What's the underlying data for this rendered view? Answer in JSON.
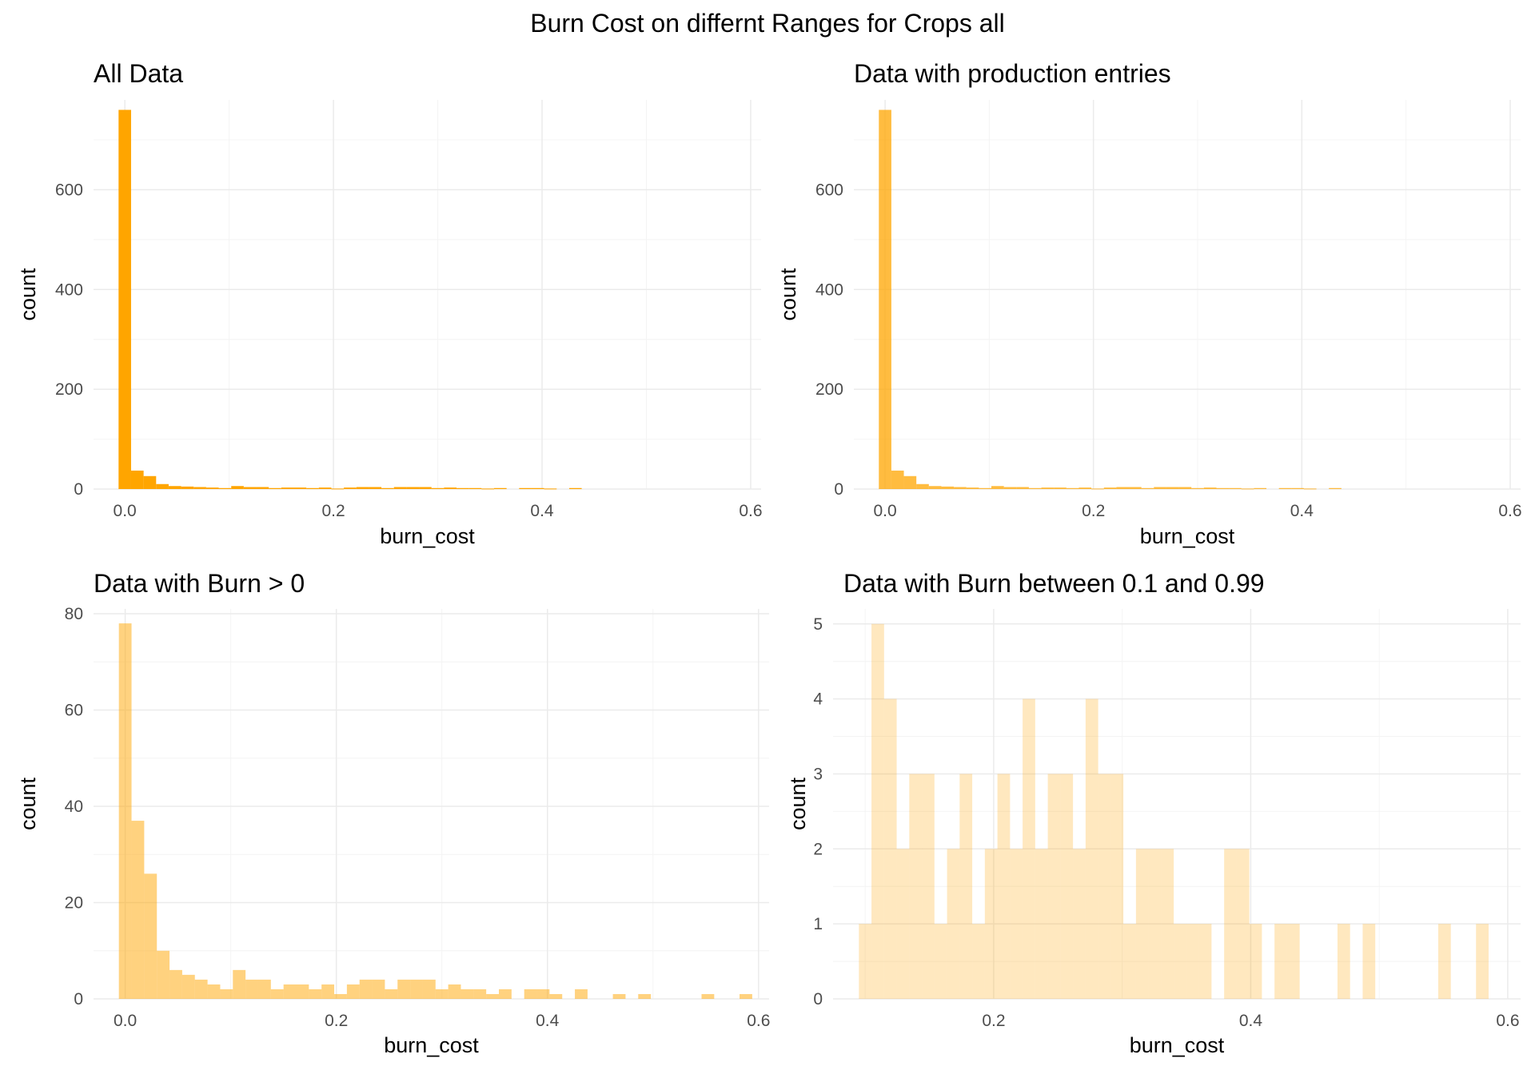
{
  "suptitle": "Burn Cost on differnt Ranges for Crops all",
  "colors": {
    "bar": "#FFA500"
  },
  "chart_data": [
    {
      "type": "bar",
      "title": "All Data",
      "xlabel": "burn_cost",
      "ylabel": "count",
      "bar_opacity": 1.0,
      "binwidth": 0.012,
      "xlim": [
        -0.03,
        0.61
      ],
      "ylim": [
        0,
        780
      ],
      "xticks": [
        0.0,
        0.2,
        0.4,
        0.6
      ],
      "xtick_labels": [
        "0.0",
        "0.2",
        "0.4",
        "0.6"
      ],
      "yticks": [
        0,
        200,
        400,
        600
      ],
      "ytick_labels": [
        "0",
        "200",
        "400",
        "600"
      ],
      "bin_centers": [
        0.0,
        0.012,
        0.024,
        0.036,
        0.048,
        0.06,
        0.072,
        0.084,
        0.096,
        0.108,
        0.12,
        0.132,
        0.144,
        0.156,
        0.168,
        0.18,
        0.192,
        0.204,
        0.216,
        0.228,
        0.24,
        0.252,
        0.264,
        0.276,
        0.288,
        0.3,
        0.312,
        0.324,
        0.336,
        0.348,
        0.36,
        0.372,
        0.384,
        0.396,
        0.408,
        0.42,
        0.432
      ],
      "counts": [
        760,
        37,
        26,
        10,
        6,
        5,
        4,
        3,
        2,
        6,
        4,
        4,
        2,
        3,
        3,
        2,
        3,
        1,
        3,
        4,
        4,
        2,
        4,
        4,
        4,
        2,
        3,
        2,
        2,
        1,
        2,
        0,
        2,
        2,
        1,
        0,
        2
      ]
    },
    {
      "type": "bar",
      "title": "Data with production entries",
      "xlabel": "burn_cost",
      "ylabel": "count",
      "bar_opacity": 0.75,
      "binwidth": 0.012,
      "xlim": [
        -0.03,
        0.61
      ],
      "ylim": [
        0,
        780
      ],
      "xticks": [
        0.0,
        0.2,
        0.4,
        0.6
      ],
      "xtick_labels": [
        "0.0",
        "0.2",
        "0.4",
        "0.6"
      ],
      "yticks": [
        0,
        200,
        400,
        600
      ],
      "ytick_labels": [
        "0",
        "200",
        "400",
        "600"
      ],
      "bin_centers": [
        0.0,
        0.012,
        0.024,
        0.036,
        0.048,
        0.06,
        0.072,
        0.084,
        0.096,
        0.108,
        0.12,
        0.132,
        0.144,
        0.156,
        0.168,
        0.18,
        0.192,
        0.204,
        0.216,
        0.228,
        0.24,
        0.252,
        0.264,
        0.276,
        0.288,
        0.3,
        0.312,
        0.324,
        0.336,
        0.348,
        0.36,
        0.372,
        0.384,
        0.396,
        0.408,
        0.42,
        0.432
      ],
      "counts": [
        760,
        37,
        26,
        10,
        6,
        5,
        4,
        3,
        2,
        6,
        4,
        4,
        2,
        3,
        3,
        2,
        3,
        1,
        3,
        4,
        4,
        2,
        4,
        4,
        4,
        2,
        3,
        2,
        2,
        1,
        2,
        0,
        2,
        2,
        1,
        0,
        2
      ]
    },
    {
      "type": "bar",
      "title": "Data with Burn > 0",
      "xlabel": "burn_cost",
      "ylabel": "count",
      "bar_opacity": 0.5,
      "binwidth": 0.012,
      "xlim": [
        -0.03,
        0.61
      ],
      "ylim": [
        0,
        81
      ],
      "xticks": [
        0.0,
        0.2,
        0.4,
        0.6
      ],
      "xtick_labels": [
        "0.0",
        "0.2",
        "0.4",
        "0.6"
      ],
      "yticks": [
        0,
        20,
        40,
        60,
        80
      ],
      "ytick_labels": [
        "0",
        "20",
        "40",
        "60",
        "80"
      ],
      "bin_centers": [
        0.0,
        0.012,
        0.024,
        0.036,
        0.048,
        0.06,
        0.072,
        0.084,
        0.096,
        0.108,
        0.12,
        0.132,
        0.144,
        0.156,
        0.168,
        0.18,
        0.192,
        0.204,
        0.216,
        0.228,
        0.24,
        0.252,
        0.264,
        0.276,
        0.288,
        0.3,
        0.312,
        0.324,
        0.336,
        0.348,
        0.36,
        0.372,
        0.384,
        0.396,
        0.408,
        0.42,
        0.432,
        0.444,
        0.456,
        0.468,
        0.48,
        0.492,
        0.504,
        0.516,
        0.528,
        0.54,
        0.552,
        0.564,
        0.576,
        0.588
      ],
      "counts": [
        78,
        37,
        26,
        10,
        6,
        5,
        4,
        3,
        2,
        6,
        4,
        4,
        2,
        3,
        3,
        2,
        3,
        1,
        3,
        4,
        4,
        2,
        4,
        4,
        4,
        2,
        3,
        2,
        2,
        1,
        2,
        0,
        2,
        2,
        1,
        0,
        2,
        0,
        0,
        1,
        0,
        1,
        0,
        0,
        0,
        0,
        1,
        0,
        0,
        1
      ]
    },
    {
      "type": "bar",
      "title": "Data with Burn between 0.1 and 0.99",
      "xlabel": "burn_cost",
      "ylabel": "count",
      "bar_opacity": 0.25,
      "binwidth": 0.0098,
      "xlim": [
        0.075,
        0.61
      ],
      "ylim": [
        0,
        5.2
      ],
      "xticks": [
        0.2,
        0.4,
        0.6
      ],
      "xtick_labels": [
        "0.2",
        "0.4",
        "0.6"
      ],
      "yticks": [
        0,
        1,
        2,
        3,
        4,
        5
      ],
      "ytick_labels": [
        "0",
        "1",
        "2",
        "3",
        "4",
        "5"
      ],
      "bin_centers": [
        0.1,
        0.1098,
        0.1196,
        0.1294,
        0.1392,
        0.149,
        0.1588,
        0.1686,
        0.1784,
        0.1882,
        0.198,
        0.2078,
        0.2176,
        0.2274,
        0.2372,
        0.247,
        0.2568,
        0.2666,
        0.2764,
        0.2862,
        0.296,
        0.3058,
        0.3156,
        0.3254,
        0.3352,
        0.345,
        0.3548,
        0.3646,
        0.3744,
        0.3842,
        0.394,
        0.4038,
        0.4136,
        0.4234,
        0.4332,
        0.443,
        0.4528,
        0.4626,
        0.4724,
        0.4822,
        0.492,
        0.5018,
        0.5116,
        0.5214,
        0.5312,
        0.541,
        0.5508,
        0.5606,
        0.5704,
        0.5802
      ],
      "counts": [
        1,
        5,
        4,
        2,
        3,
        3,
        1,
        2,
        3,
        1,
        2,
        3,
        2,
        4,
        2,
        3,
        3,
        2,
        4,
        3,
        3,
        1,
        2,
        2,
        2,
        1,
        1,
        1,
        0,
        2,
        2,
        1,
        0,
        1,
        1,
        0,
        0,
        0,
        1,
        0,
        1,
        0,
        0,
        0,
        0,
        0,
        1,
        0,
        0,
        1
      ]
    }
  ]
}
